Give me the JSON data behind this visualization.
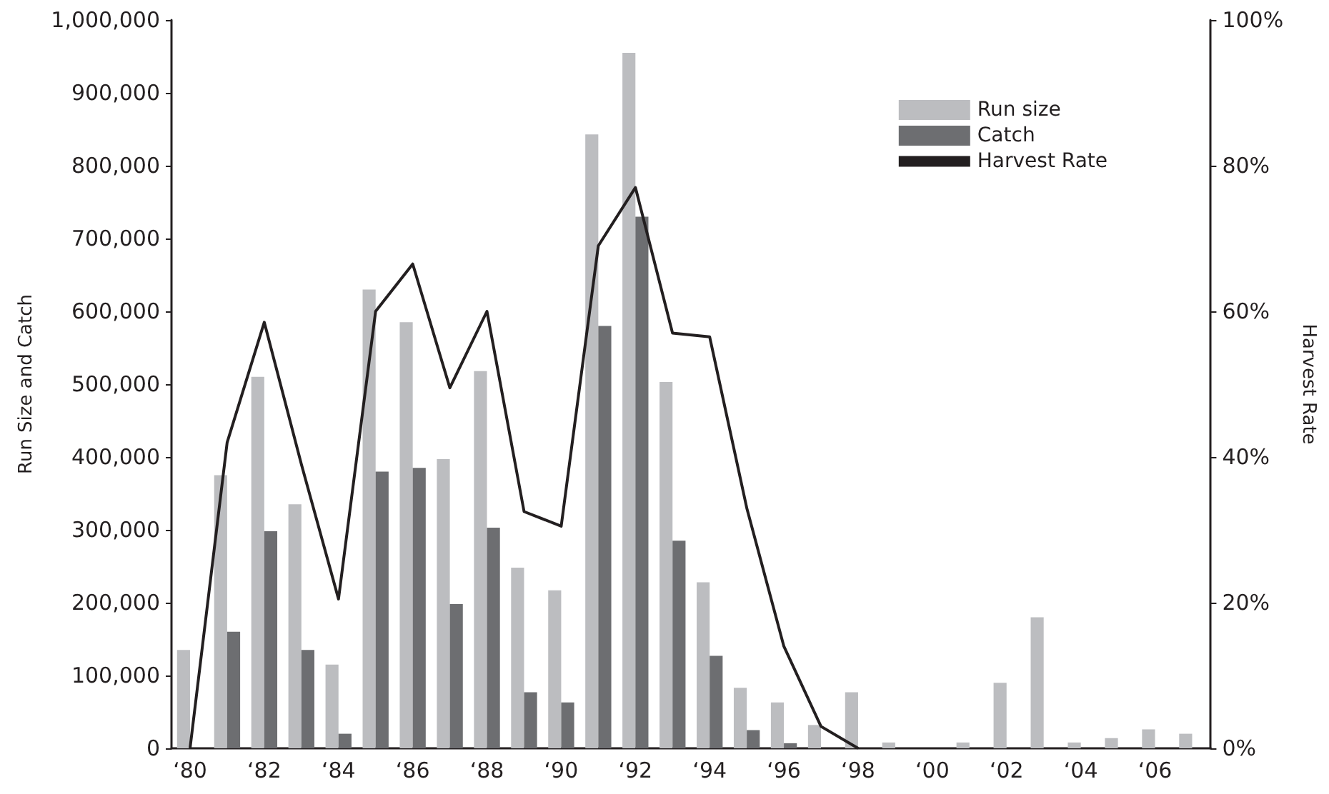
{
  "chart_data": {
    "type": "bar",
    "ylabel": "Run Size and Catch",
    "y2label": "Harvest Rate",
    "categories": [
      "‘80",
      null,
      "‘82",
      null,
      "‘84",
      null,
      "‘86",
      null,
      "‘88",
      null,
      "‘90",
      null,
      "‘92",
      null,
      "‘94",
      null,
      "‘96",
      null,
      "‘98",
      null,
      "‘00",
      null,
      "‘02",
      null,
      "‘04",
      null,
      "‘06",
      null
    ],
    "series": [
      {
        "name": "Run size",
        "color": "#bcbdc0",
        "values": [
          135000,
          375000,
          510000,
          335000,
          115000,
          630000,
          585000,
          397000,
          518000,
          248000,
          217000,
          843000,
          955000,
          503000,
          228000,
          83000,
          63000,
          32000,
          77000,
          8000,
          0,
          8000,
          90000,
          180000,
          8000,
          14000,
          26000,
          20000
        ]
      },
      {
        "name": "Catch",
        "color": "#6d6e71",
        "values": [
          0,
          160000,
          298000,
          135000,
          20000,
          380000,
          385000,
          198000,
          303000,
          77000,
          63000,
          580000,
          730000,
          285000,
          127000,
          25000,
          7000,
          0,
          0,
          0,
          0,
          0,
          0,
          0,
          0,
          0,
          0,
          0
        ]
      },
      {
        "name": "Harvest Rate",
        "type": "line",
        "axis": "y2",
        "color": "#231f20",
        "values": [
          0,
          42,
          58.5,
          39,
          20.5,
          60,
          66.5,
          49.5,
          60,
          32.5,
          30.5,
          69,
          77,
          57,
          56.5,
          33,
          14,
          3,
          0,
          null,
          null,
          null,
          null,
          null,
          null,
          null,
          null,
          null
        ]
      }
    ],
    "ylim": [
      0,
      1000000
    ],
    "yticks": [
      {
        "value": 0,
        "label": "0"
      },
      {
        "value": 100000,
        "label": "100,000"
      },
      {
        "value": 200000,
        "label": "200,000"
      },
      {
        "value": 300000,
        "label": "300,000"
      },
      {
        "value": 400000,
        "label": "400,000"
      },
      {
        "value": 500000,
        "label": "500,000"
      },
      {
        "value": 600000,
        "label": "600,000"
      },
      {
        "value": 700000,
        "label": "700,000"
      },
      {
        "value": 800000,
        "label": "800,000"
      },
      {
        "value": 900000,
        "label": "900,000"
      },
      {
        "value": 1000000,
        "label": "1,000,000"
      }
    ],
    "y2lim": [
      0,
      100
    ],
    "y2ticks": [
      {
        "value": 0,
        "label": "0%"
      },
      {
        "value": 20,
        "label": "20%"
      },
      {
        "value": 40,
        "label": "40%"
      },
      {
        "value": 60,
        "label": "60%"
      },
      {
        "value": 80,
        "label": "80%"
      },
      {
        "value": 100,
        "label": "100%"
      }
    ],
    "grid": false,
    "legend": "top right",
    "marker": "none",
    "line_style": "solid"
  }
}
